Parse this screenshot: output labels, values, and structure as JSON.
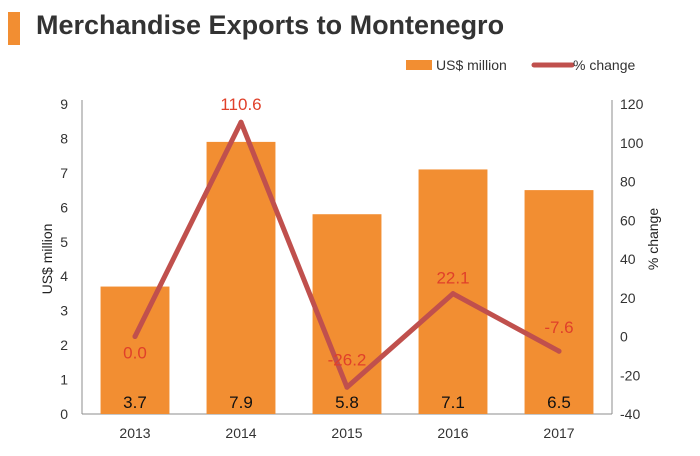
{
  "chart_data": {
    "type": "bar",
    "title": "Merchandise Exports to Montenegro",
    "categories": [
      "2013",
      "2014",
      "2015",
      "2016",
      "2017"
    ],
    "series": [
      {
        "name": "US$ million",
        "type": "bar",
        "axis": "left",
        "values": [
          3.7,
          7.9,
          5.8,
          7.1,
          6.5
        ],
        "labels": [
          "3.7",
          "7.9",
          "5.8",
          "7.1",
          "6.5"
        ],
        "color": "#F28E32"
      },
      {
        "name": "% change",
        "type": "line",
        "axis": "right",
        "values": [
          0.0,
          110.6,
          -26.2,
          22.1,
          -7.6
        ],
        "labels": [
          "0.0",
          "110.6",
          "-26.2",
          "22.1",
          "-7.6"
        ],
        "color": "#C0504D"
      }
    ],
    "ylabel": "US$ million",
    "ylim": [
      0,
      9
    ],
    "yticks": [
      "0",
      "1",
      "2",
      "3",
      "4",
      "5",
      "6",
      "7",
      "8",
      "9"
    ],
    "y2label": "% change",
    "y2lim": [
      -40,
      120
    ],
    "y2ticks": [
      "-40",
      "-20",
      "0",
      "20",
      "40",
      "60",
      "80",
      "100",
      "120"
    ],
    "grid": false,
    "legend": "top-right",
    "accent_color": "#F28E32",
    "label_color": "#E0402A"
  }
}
